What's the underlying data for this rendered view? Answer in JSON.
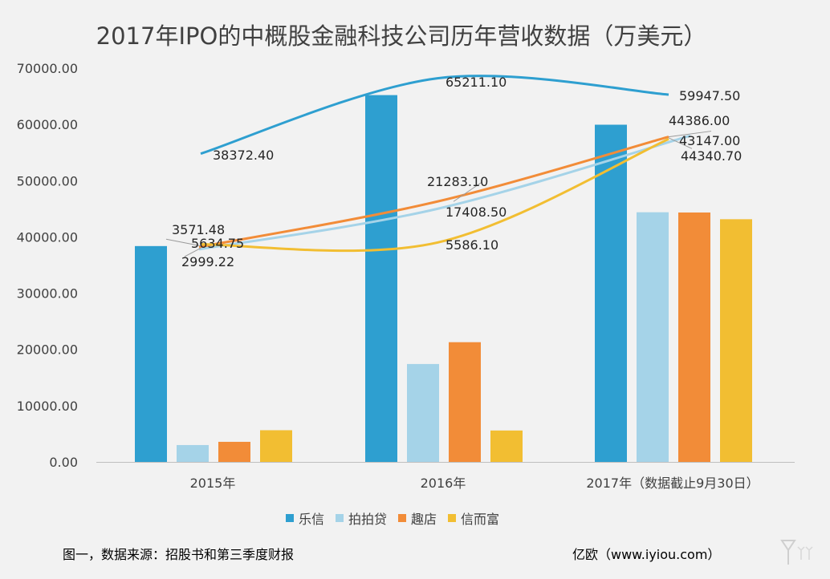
{
  "chart_data": {
    "type": "bar",
    "title": "2017年IPO的中概股金融科技公司历年营收数据（万美元）",
    "categories": [
      "2015年",
      "2016年",
      "2017年（数据截止9月30日）"
    ],
    "ylim": [
      0,
      70000
    ],
    "yticks": [
      "0.00",
      "10000.00",
      "20000.00",
      "30000.00",
      "40000.00",
      "50000.00",
      "60000.00",
      "70000.00"
    ],
    "ytick_values": [
      0,
      10000,
      20000,
      30000,
      40000,
      50000,
      60000,
      70000
    ],
    "grid": false,
    "legend_position": "bottom",
    "series": [
      {
        "name": "乐信",
        "color": "#2e9fd0",
        "values": [
          38372.4,
          65211.1,
          59947.5
        ],
        "labels": [
          "38372.40",
          "65211.10",
          "59947.50"
        ]
      },
      {
        "name": "拍拍贷",
        "color": "#a5d3e8",
        "values": [
          2999.22,
          17408.5,
          44386.0
        ],
        "labels": [
          "2999.22",
          "17408.50",
          "44386.00"
        ]
      },
      {
        "name": "趣店",
        "color": "#f28c38",
        "values": [
          3571.48,
          21283.1,
          44340.7
        ],
        "labels": [
          "3571.48",
          "21283.10",
          "44340.70"
        ]
      },
      {
        "name": "信而富",
        "color": "#f2be32",
        "values": [
          5634.75,
          5586.1,
          43147.0
        ],
        "labels": [
          "5634.75",
          "5586.10",
          "43147.00"
        ]
      }
    ]
  },
  "footer": {
    "note": "图一，数据来源：招股书和第三季度财报",
    "brand": "亿欧（www.iyiou.com）"
  }
}
